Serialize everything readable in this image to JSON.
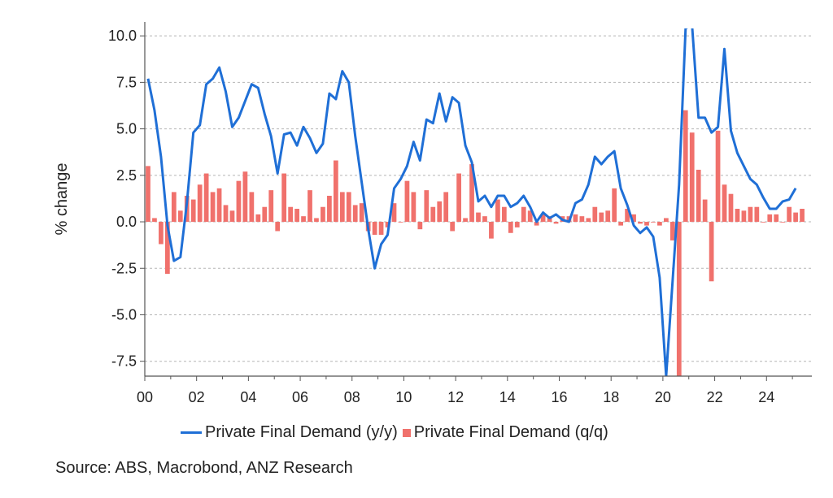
{
  "chart_data": {
    "type": "bar+line",
    "ylabel": "% change",
    "ylim": [
      -8.3,
      10.4
    ],
    "yticks": [
      "10.0",
      "7.5",
      "5.0",
      "2.5",
      "0.0",
      "-2.5",
      "-5.0",
      "-7.5"
    ],
    "ytick_values": [
      10,
      7.5,
      5,
      2.5,
      0,
      -2.5,
      -5,
      -7.5
    ],
    "xticks": [
      "00",
      "02",
      "04",
      "06",
      "08",
      "10",
      "12",
      "14",
      "16",
      "18",
      "20",
      "22",
      "24"
    ],
    "xtick_values": [
      2000,
      2002,
      2004,
      2006,
      2008,
      2010,
      2012,
      2014,
      2016,
      2018,
      2020,
      2022,
      2024
    ],
    "xlim": [
      2000,
      2025.75
    ],
    "grid": "horizontal-dashed",
    "legend_position": "bottom",
    "series": [
      {
        "name": "Private Final Demand (y/y)",
        "kind": "line",
        "color": "#1f6fd6",
        "x": [
          2000.0,
          2000.25,
          2000.5,
          2000.75,
          2001.0,
          2001.25,
          2001.5,
          2001.75,
          2002.0,
          2002.25,
          2002.5,
          2002.75,
          2003.0,
          2003.25,
          2003.5,
          2003.75,
          2004.0,
          2004.25,
          2004.5,
          2004.75,
          2005.0,
          2005.25,
          2005.5,
          2005.75,
          2006.0,
          2006.25,
          2006.5,
          2006.75,
          2007.0,
          2007.25,
          2007.5,
          2007.75,
          2008.0,
          2008.25,
          2008.5,
          2008.75,
          2009.0,
          2009.25,
          2009.5,
          2009.75,
          2010.0,
          2010.25,
          2010.5,
          2010.75,
          2011.0,
          2011.25,
          2011.5,
          2011.75,
          2012.0,
          2012.25,
          2012.5,
          2012.75,
          2013.0,
          2013.25,
          2013.5,
          2013.75,
          2014.0,
          2014.25,
          2014.5,
          2014.75,
          2015.0,
          2015.25,
          2015.5,
          2015.75,
          2016.0,
          2016.25,
          2016.5,
          2016.75,
          2017.0,
          2017.25,
          2017.5,
          2017.75,
          2018.0,
          2018.25,
          2018.5,
          2018.75,
          2019.0,
          2019.25,
          2019.5,
          2019.75,
          2020.0,
          2020.25,
          2020.5,
          2020.75,
          2021.0,
          2021.25,
          2021.5,
          2021.75,
          2022.0,
          2022.25,
          2022.5,
          2022.75,
          2023.0,
          2023.25,
          2023.5,
          2023.75,
          2024.0,
          2024.25,
          2024.5,
          2024.75,
          2025.0,
          2025.25
        ],
        "values": [
          7.7,
          6.0,
          3.5,
          -0.2,
          -2.1,
          -1.9,
          1.0,
          4.8,
          5.2,
          7.4,
          7.7,
          8.3,
          7.0,
          5.1,
          5.6,
          6.5,
          7.4,
          7.2,
          5.8,
          4.6,
          2.6,
          4.7,
          4.8,
          4.1,
          5.1,
          4.5,
          3.7,
          4.2,
          6.9,
          6.6,
          8.1,
          7.5,
          4.6,
          2.1,
          -0.4,
          -2.5,
          -1.2,
          -0.7,
          1.8,
          2.3,
          3.0,
          4.3,
          3.3,
          5.5,
          5.3,
          6.9,
          5.4,
          6.7,
          6.4,
          4.1,
          3.2,
          1.1,
          1.4,
          0.8,
          1.4,
          1.4,
          0.8,
          1.0,
          1.4,
          0.8,
          0.0,
          0.5,
          0.2,
          0.4,
          0.1,
          0.0,
          1.0,
          1.2,
          2.0,
          3.5,
          3.1,
          3.5,
          3.8,
          1.8,
          0.9,
          -0.2,
          -0.6,
          -0.3,
          -0.8,
          -3.0,
          -8.3,
          -3.2,
          2.0,
          10.4,
          10.6,
          5.6,
          5.6,
          4.8,
          5.1,
          9.3,
          4.9,
          3.7,
          3.0,
          2.3,
          2.0,
          1.3,
          0.7,
          0.7,
          1.1,
          1.2,
          1.8,
          null
        ]
      },
      {
        "name": "Private Final Demand (q/q)",
        "kind": "bar",
        "color": "#f0716c",
        "x": [
          2000.0,
          2000.25,
          2000.5,
          2000.75,
          2001.0,
          2001.25,
          2001.5,
          2001.75,
          2002.0,
          2002.25,
          2002.5,
          2002.75,
          2003.0,
          2003.25,
          2003.5,
          2003.75,
          2004.0,
          2004.25,
          2004.5,
          2004.75,
          2005.0,
          2005.25,
          2005.5,
          2005.75,
          2006.0,
          2006.25,
          2006.5,
          2006.75,
          2007.0,
          2007.25,
          2007.5,
          2007.75,
          2008.0,
          2008.25,
          2008.5,
          2008.75,
          2009.0,
          2009.25,
          2009.5,
          2009.75,
          2010.0,
          2010.25,
          2010.5,
          2010.75,
          2011.0,
          2011.25,
          2011.5,
          2011.75,
          2012.0,
          2012.25,
          2012.5,
          2012.75,
          2013.0,
          2013.25,
          2013.5,
          2013.75,
          2014.0,
          2014.25,
          2014.5,
          2014.75,
          2015.0,
          2015.25,
          2015.5,
          2015.75,
          2016.0,
          2016.25,
          2016.5,
          2016.75,
          2017.0,
          2017.25,
          2017.5,
          2017.75,
          2018.0,
          2018.25,
          2018.5,
          2018.75,
          2019.0,
          2019.25,
          2019.5,
          2019.75,
          2020.0,
          2020.25,
          2020.5,
          2020.75,
          2021.0,
          2021.25,
          2021.5,
          2021.75,
          2022.0,
          2022.25,
          2022.5,
          2022.75,
          2023.0,
          2023.25,
          2023.5,
          2023.75,
          2024.0,
          2024.25,
          2024.5,
          2024.75,
          2025.0,
          2025.25
        ],
        "values": [
          3.0,
          0.2,
          -1.2,
          -2.8,
          1.6,
          0.6,
          1.4,
          1.2,
          2.0,
          2.6,
          1.6,
          1.8,
          0.9,
          0.6,
          2.2,
          2.7,
          1.6,
          0.4,
          0.8,
          1.7,
          -0.5,
          2.6,
          0.8,
          0.7,
          0.3,
          1.7,
          0.2,
          0.8,
          1.4,
          3.3,
          1.6,
          1.6,
          0.9,
          1.0,
          -0.5,
          -0.7,
          -0.7,
          -0.3,
          1.0,
          0.0,
          2.2,
          1.6,
          -0.4,
          1.7,
          0.8,
          1.1,
          1.6,
          -0.5,
          2.6,
          0.2,
          3.1,
          0.5,
          0.3,
          -0.9,
          1.2,
          0.8,
          -0.6,
          -0.3,
          0.8,
          0.6,
          -0.2,
          0.4,
          0.3,
          -0.1,
          0.3,
          0.3,
          0.4,
          0.3,
          0.2,
          0.8,
          0.5,
          0.6,
          1.8,
          -0.2,
          0.7,
          0.4,
          -0.1,
          -0.2,
          0.0,
          -0.2,
          0.2,
          -1.0,
          -8.3,
          6.0,
          4.8,
          2.8,
          1.2,
          -3.2,
          4.9,
          2.0,
          1.5,
          0.7,
          0.6,
          0.8,
          0.8,
          0.0,
          0.4,
          0.4,
          0.0,
          0.8,
          0.5,
          0.7
        ]
      }
    ]
  },
  "legend": {
    "line_label": "Private Final Demand (y/y)",
    "bar_label": "Private Final Demand (q/q)",
    "line_color": "#1f6fd6",
    "bar_color": "#f0716c"
  },
  "source": "Source: ABS, Macrobond, ANZ Research"
}
